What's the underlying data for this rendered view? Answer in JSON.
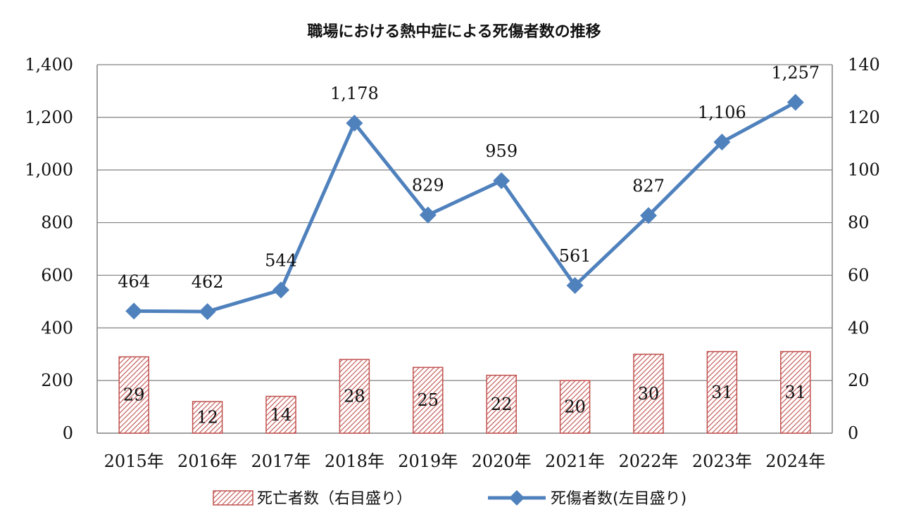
{
  "chart_data": {
    "type": "bar+line",
    "title": "職場における熱中症による死傷者数の推移",
    "categories": [
      "2015年",
      "2016年",
      "2017年",
      "2018年",
      "2019年",
      "2020年",
      "2021年",
      "2022年",
      "2023年",
      "2024年"
    ],
    "series": [
      {
        "name": "死亡者数（右目盛り）",
        "type": "bar",
        "axis": "right",
        "values": [
          29,
          12,
          14,
          28,
          25,
          22,
          20,
          30,
          31,
          31
        ],
        "color": "#c0504d"
      },
      {
        "name": "死傷者数(左目盛り)",
        "type": "line",
        "axis": "left",
        "marker": "diamond",
        "values": [
          464,
          462,
          544,
          1178,
          829,
          959,
          561,
          827,
          1106,
          1257
        ],
        "color": "#4f81bd"
      }
    ],
    "y_left": {
      "ylim": [
        0,
        1400
      ],
      "ticks": [
        "0",
        "200",
        "400",
        "600",
        "800",
        "1,000",
        "1,200",
        "1,400"
      ]
    },
    "y_right": {
      "ylim": [
        0,
        140
      ],
      "ticks": [
        "0",
        "20",
        "40",
        "60",
        "80",
        "100",
        "120",
        "140"
      ]
    },
    "line_labels": [
      "464",
      "462",
      "544",
      "1,178",
      "829",
      "959",
      "561",
      "827",
      "1,106",
      "1,257"
    ],
    "bar_labels": [
      "29",
      "12",
      "14",
      "28",
      "25",
      "22",
      "20",
      "30",
      "31",
      "31"
    ],
    "grid": true,
    "legend_position": "bottom"
  }
}
